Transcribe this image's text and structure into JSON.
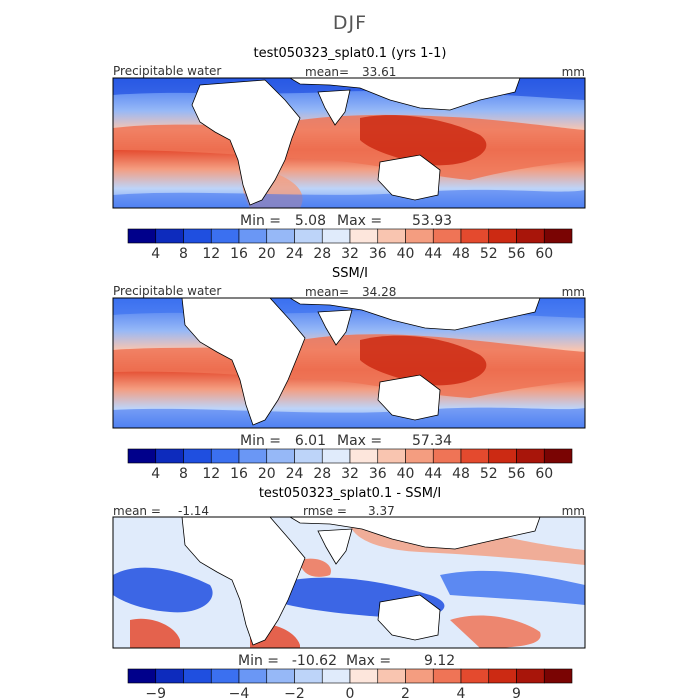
{
  "figure": {
    "title": "DJF"
  },
  "chart_data": [
    {
      "type": "heatmap",
      "title": "test050323_splat0.1 (yrs 1-1)",
      "variable_label": "Precipitable water",
      "mean_label": "mean=",
      "mean_value": "33.61",
      "units": "mm",
      "min_label": "Min =",
      "min_value": "5.08",
      "max_label": "Max =",
      "max_value": "53.93",
      "colorbar": {
        "colors": [
          "#00008b",
          "#0d2bbd",
          "#1f4fe0",
          "#3b70f0",
          "#6a97f5",
          "#96b8f7",
          "#bdd4f9",
          "#e0ebfb",
          "#fde6dc",
          "#f9c5b0",
          "#f49d80",
          "#ef7456",
          "#e44a2e",
          "#cc2a13",
          "#a8150a",
          "#7a0403"
        ],
        "tick_labels": [
          "4",
          "8",
          "12",
          "16",
          "20",
          "24",
          "28",
          "32",
          "36",
          "40",
          "44",
          "48",
          "52",
          "56",
          "60"
        ]
      }
    },
    {
      "type": "heatmap",
      "title": "SSM/I",
      "variable_label": "Precipitable water",
      "mean_label": "mean=",
      "mean_value": "34.28",
      "units": "mm",
      "min_label": "Min =",
      "min_value": "6.01",
      "max_label": "Max =",
      "max_value": "57.34",
      "colorbar": {
        "colors": [
          "#00008b",
          "#0d2bbd",
          "#1f4fe0",
          "#3b70f0",
          "#6a97f5",
          "#96b8f7",
          "#bdd4f9",
          "#e0ebfb",
          "#fde6dc",
          "#f9c5b0",
          "#f49d80",
          "#ef7456",
          "#e44a2e",
          "#cc2a13",
          "#a8150a",
          "#7a0403"
        ],
        "tick_labels": [
          "4",
          "8",
          "12",
          "16",
          "20",
          "24",
          "28",
          "32",
          "36",
          "40",
          "44",
          "48",
          "52",
          "56",
          "60"
        ]
      }
    },
    {
      "type": "heatmap",
      "title": "test050323_splat0.1 - SSM/I",
      "mean_label": "mean =",
      "mean_value": "-1.14",
      "rmse_label": "rmse =",
      "rmse_value": "3.37",
      "units": "mm",
      "min_label": "Min =",
      "min_value": "-10.62",
      "max_label": "Max =",
      "max_value": "9.12",
      "colorbar": {
        "colors": [
          "#00008b",
          "#0d2bbd",
          "#1f4fe0",
          "#3b70f0",
          "#6a97f5",
          "#96b8f7",
          "#bdd4f9",
          "#e0ebfb",
          "#fde6dc",
          "#f9c5b0",
          "#f49d80",
          "#ef7456",
          "#e44a2e",
          "#cc2a13",
          "#a8150a",
          "#7a0403"
        ],
        "tick_labels": [
          "−9",
          "−4",
          "−2",
          "0",
          "2",
          "4",
          "9"
        ]
      }
    }
  ]
}
